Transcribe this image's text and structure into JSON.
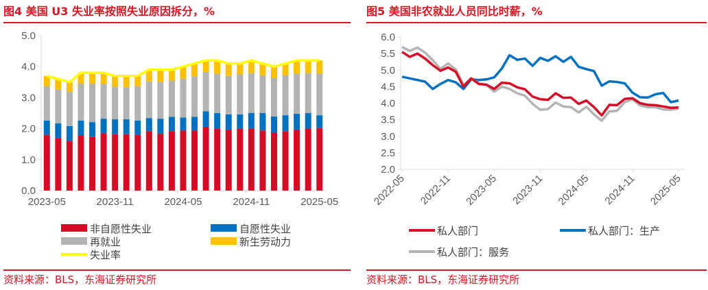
{
  "colors": {
    "accent": "#d7141f",
    "red": "#d60b24",
    "blue": "#0070c0",
    "gray": "#b3b3b3",
    "gold": "#ffc000",
    "yellow": "#ffff00",
    "axis": "#d9d9d9"
  },
  "chart_data": [
    {
      "type": "bar",
      "stacked": true,
      "title": "图4 美国 U3 失业率按照失业原因拆分，%",
      "source": "资料来源：BLS，东海证券研究所",
      "ylim": [
        0,
        5
      ],
      "yticks": [
        "0.0",
        "1.0",
        "2.0",
        "3.0",
        "4.0",
        "5.0"
      ],
      "xtick_labels": [
        "2023-05",
        "2023-11",
        "2024-05",
        "2024-11",
        "2025-05"
      ],
      "x_start": "2023-05",
      "x_end": "2025-05",
      "series": [
        {
          "name": "非自愿性失业",
          "kind": "bar",
          "color_key": "red",
          "values": [
            1.8,
            1.7,
            1.6,
            1.78,
            1.73,
            1.85,
            1.82,
            1.82,
            1.8,
            1.92,
            1.84,
            1.92,
            1.94,
            1.94,
            2.06,
            2.0,
            1.96,
            2.0,
            2.0,
            1.94,
            1.87,
            1.91,
            1.96,
            2.0,
            2.02
          ]
        },
        {
          "name": "自愿性失业",
          "kind": "bar",
          "color_key": "blue",
          "values": [
            0.46,
            0.47,
            0.48,
            0.48,
            0.48,
            0.47,
            0.48,
            0.48,
            0.46,
            0.42,
            0.48,
            0.46,
            0.42,
            0.44,
            0.5,
            0.5,
            0.5,
            0.46,
            0.5,
            0.56,
            0.52,
            0.52,
            0.52,
            0.5,
            0.41
          ]
        },
        {
          "name": "再就业",
          "kind": "bar",
          "color_key": "gray",
          "values": [
            1.11,
            1.09,
            1.11,
            1.19,
            1.24,
            1.12,
            1.05,
            1.04,
            1.11,
            1.18,
            1.18,
            1.17,
            1.25,
            1.3,
            1.27,
            1.27,
            1.24,
            1.29,
            1.29,
            1.22,
            1.24,
            1.29,
            1.29,
            1.29,
            1.34
          ]
        },
        {
          "name": "新生劳动力",
          "kind": "bar",
          "color_key": "gold",
          "values": [
            0.33,
            0.34,
            0.31,
            0.35,
            0.35,
            0.36,
            0.35,
            0.36,
            0.33,
            0.38,
            0.4,
            0.35,
            0.39,
            0.42,
            0.37,
            0.43,
            0.4,
            0.35,
            0.41,
            0.38,
            0.37,
            0.38,
            0.43,
            0.41,
            0.43
          ]
        },
        {
          "name": "失业率",
          "kind": "line",
          "color_key": "yellow",
          "values": [
            3.7,
            3.6,
            3.5,
            3.8,
            3.8,
            3.8,
            3.7,
            3.7,
            3.7,
            3.9,
            3.9,
            3.9,
            4.0,
            4.1,
            4.2,
            4.2,
            4.1,
            4.1,
            4.2,
            4.1,
            4.0,
            4.1,
            4.2,
            4.2,
            4.2
          ]
        }
      ]
    },
    {
      "type": "line",
      "title": "图5 美国非农就业人员同比时薪，%",
      "source": "资料来源：BLS，东海证券研究所",
      "ylim": [
        2,
        6
      ],
      "yticks": [
        "2.0",
        "2.5",
        "3.0",
        "3.5",
        "4.0",
        "4.5",
        "5.0",
        "5.5",
        "6.0"
      ],
      "xtick_labels": [
        "2022-05",
        "2022-11",
        "2023-05",
        "2023-11",
        "2024-05",
        "2024-11",
        "2025-05"
      ],
      "x_start": "2022-05",
      "x_end": "2025-05",
      "series": [
        {
          "name": "私人部门：生产",
          "color_key": "blue",
          "values": [
            4.8,
            4.75,
            4.7,
            4.65,
            4.43,
            4.58,
            4.7,
            4.63,
            4.43,
            4.72,
            4.7,
            4.72,
            4.78,
            5.05,
            5.45,
            5.31,
            5.35,
            5.13,
            5.37,
            5.28,
            5.42,
            5.25,
            5.4,
            5.1,
            5.03,
            4.97,
            4.53,
            4.66,
            4.64,
            4.6,
            4.32,
            4.18,
            4.17,
            4.27,
            4.31,
            4.03,
            4.08
          ]
        },
        {
          "name": "私人部门：服务",
          "color_key": "gray",
          "values": [
            5.7,
            5.58,
            5.68,
            5.53,
            5.3,
            5.04,
            5.2,
            5.02,
            4.55,
            4.74,
            4.6,
            4.55,
            4.35,
            4.5,
            4.43,
            4.3,
            4.23,
            3.98,
            3.8,
            3.82,
            4.02,
            3.9,
            3.88,
            3.72,
            3.89,
            3.66,
            3.47,
            3.75,
            3.77,
            4.03,
            4.12,
            3.93,
            3.88,
            3.88,
            3.81,
            3.8,
            3.84
          ]
        },
        {
          "name": "私人部门",
          "color_key": "red",
          "values": [
            5.55,
            5.4,
            5.5,
            5.35,
            5.15,
            4.98,
            5.08,
            4.95,
            4.5,
            4.75,
            4.58,
            4.56,
            4.43,
            4.62,
            4.6,
            4.48,
            4.42,
            4.2,
            4.12,
            4.1,
            4.3,
            4.16,
            4.17,
            3.98,
            4.08,
            3.88,
            3.63,
            3.95,
            3.94,
            4.13,
            4.15,
            4.0,
            3.95,
            3.94,
            3.9,
            3.86,
            3.87
          ]
        }
      ]
    }
  ]
}
